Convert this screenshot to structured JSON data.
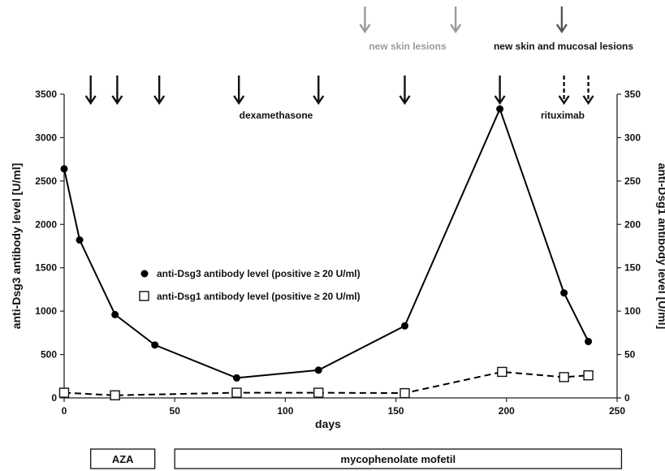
{
  "chart_data": {
    "type": "line",
    "xlabel": "days",
    "ylabel_left": "anti-Dsg3 antibody level [U/ml]",
    "ylabel_right": "anti-Dsg1 antibody level [U/ml]",
    "xlim": [
      0,
      250
    ],
    "ylim_left": [
      0,
      3500
    ],
    "ylim_right": [
      0,
      350
    ],
    "x_ticks": [
      "0",
      "50",
      "100",
      "150",
      "200",
      "250"
    ],
    "y_left_ticks": [
      "0",
      "500",
      "1000",
      "1500",
      "2000",
      "2500",
      "3000",
      "3500"
    ],
    "y_right_ticks": [
      "0",
      "50",
      "100",
      "150",
      "200",
      "250",
      "300",
      "350"
    ],
    "grid": false,
    "legend_position": "center-left",
    "series": [
      {
        "name": "anti-Dsg3 antibody level (positive ≥ 20 U/ml)",
        "axis": "left",
        "marker": "filled-circle",
        "line": "solid",
        "points": [
          {
            "x": 0,
            "y": 2640
          },
          {
            "x": 7,
            "y": 1820
          },
          {
            "x": 23,
            "y": 960
          },
          {
            "x": 41,
            "y": 610
          },
          {
            "x": 78,
            "y": 230
          },
          {
            "x": 115,
            "y": 320
          },
          {
            "x": 154,
            "y": 830
          },
          {
            "x": 197,
            "y": 3330
          },
          {
            "x": 226,
            "y": 1210
          },
          {
            "x": 237,
            "y": 650
          }
        ]
      },
      {
        "name": "anti-Dsg1 antibody level (positive ≥ 20 U/ml)",
        "axis": "right",
        "marker": "open-square",
        "line": "dashed",
        "points": [
          {
            "x": 0,
            "y": 6
          },
          {
            "x": 23,
            "y": 3
          },
          {
            "x": 78,
            "y": 6
          },
          {
            "x": 115,
            "y": 6
          },
          {
            "x": 154,
            "y": 5.5
          },
          {
            "x": 198,
            "y": 30
          },
          {
            "x": 226,
            "y": 24
          },
          {
            "x": 237,
            "y": 26
          }
        ]
      }
    ],
    "annotations": {
      "dexamethasone": {
        "label": "dexamethasone",
        "arrow_days": [
          12,
          24,
          43,
          79,
          115,
          154,
          197
        ]
      },
      "rituximab": {
        "label": "rituximab",
        "arrow_days": [
          226,
          237
        ]
      },
      "new_skin_lesions": {
        "label": "new skin lesions",
        "arrow_days": [
          136,
          177
        ]
      },
      "new_skin_mucosal_lesions": {
        "label": "new skin and mucosal lesions",
        "arrow_days": [
          225
        ]
      }
    },
    "treatments": [
      {
        "label": "AZA",
        "start_day": 12,
        "end_day": 41
      },
      {
        "label": "mycophenolate mofetil",
        "start_day": 50,
        "end_day": 252
      }
    ]
  }
}
